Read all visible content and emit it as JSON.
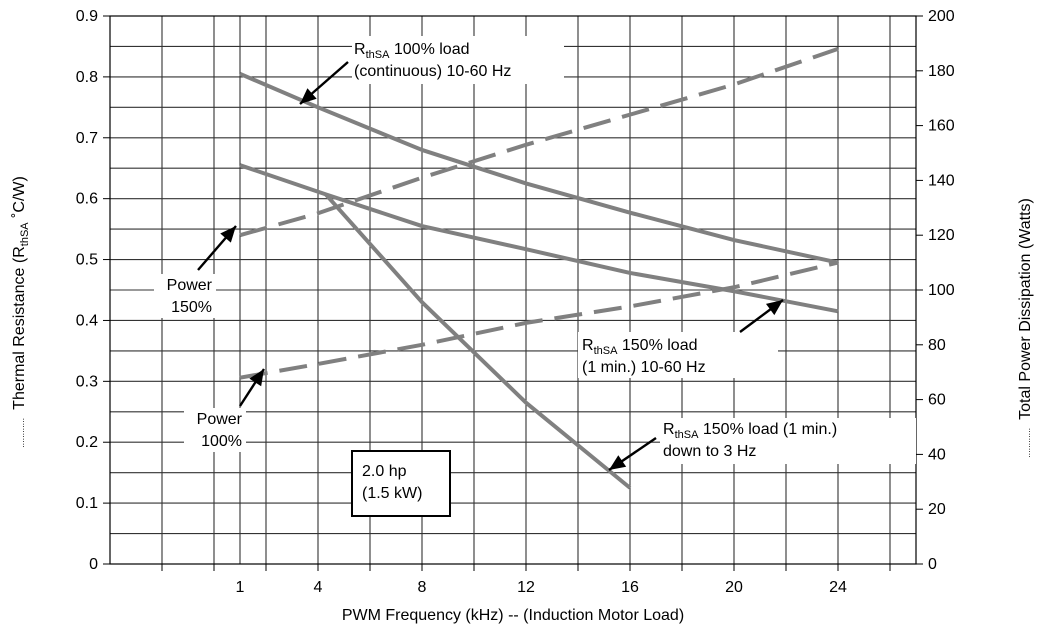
{
  "chart_data": {
    "type": "line",
    "xlabel": "PWM Frequency (kHz) -- (Induction Motor Load)",
    "ylabel_left": "Thermal Resistance (R",
    "ylabel_left_sub": "thSA",
    "ylabel_left_unit": " ˚C/W)",
    "ylabel_left_prefix": "............",
    "ylabel_right": "Total Power Dissipation (Watts)",
    "ylabel_right_prefix": "............",
    "x_ticks": [
      {
        "pos": 1,
        "label": "1"
      },
      {
        "pos": 4,
        "label": "4"
      },
      {
        "pos": 8,
        "label": "8"
      },
      {
        "pos": 12,
        "label": "12"
      },
      {
        "pos": 16,
        "label": "16"
      },
      {
        "pos": 20,
        "label": "20"
      },
      {
        "pos": 24,
        "label": "24"
      }
    ],
    "xlim": [
      -4,
      27
    ],
    "ylim_left": [
      0,
      0.9
    ],
    "ylim_right": [
      0,
      200
    ],
    "y_left_ticks": [
      "0",
      "0.1",
      "0.2",
      "0.3",
      "0.4",
      "0.5",
      "0.6",
      "0.7",
      "0.8",
      "0.9"
    ],
    "y_left_tick_values": [
      0,
      0.1,
      0.2,
      0.3,
      0.4,
      0.5,
      0.6,
      0.7,
      0.8,
      0.9
    ],
    "y_right_ticks": [
      "0",
      "20",
      "40",
      "60",
      "80",
      "100",
      "120",
      "140",
      "160",
      "180",
      "200"
    ],
    "y_right_tick_values": [
      0,
      20,
      40,
      60,
      80,
      100,
      120,
      140,
      160,
      180,
      200
    ],
    "grid": true,
    "series": [
      {
        "axis": "left",
        "style": "solid",
        "x": [
          1,
          4,
          8,
          12,
          16,
          20,
          24
        ],
        "y": [
          0.805,
          0.75,
          0.68,
          0.625,
          0.577,
          0.532,
          0.495
        ]
      },
      {
        "axis": "left",
        "style": "solid",
        "x": [
          1,
          4.3,
          8,
          12,
          16,
          20,
          24
        ],
        "y": [
          0.655,
          0.607,
          0.555,
          0.517,
          0.478,
          0.448,
          0.415
        ]
      },
      {
        "axis": "left",
        "style": "solid",
        "x": [
          4.3,
          8,
          12,
          16
        ],
        "y": [
          0.607,
          0.43,
          0.265,
          0.125
        ]
      },
      {
        "axis": "right",
        "style": "dashed",
        "x": [
          1,
          4,
          8,
          12,
          16,
          20,
          24
        ],
        "y": [
          120,
          128,
          141,
          153,
          164,
          175,
          188
        ]
      },
      {
        "axis": "right",
        "style": "dashed",
        "x": [
          1,
          4,
          8,
          12,
          16,
          20,
          24
        ],
        "y": [
          68,
          73,
          80,
          88,
          94,
          101,
          110
        ]
      }
    ],
    "annotations": [
      {
        "id": "r100",
        "lines": [
          {
            "main": "R",
            "sub": "thSA",
            "rest": " 100% load"
          },
          {
            "main": "(continuous) 10-60 Hz"
          }
        ]
      },
      {
        "id": "r150",
        "lines": [
          {
            "main": "R",
            "sub": "thSA",
            "rest": " 150% load"
          },
          {
            "main": "(1 min.) 10-60 Hz"
          }
        ]
      },
      {
        "id": "r150low",
        "lines": [
          {
            "main": "R",
            "sub": "thSA",
            "rest": " 150% load (1 min.)"
          },
          {
            "main": "down to 3 Hz"
          }
        ]
      },
      {
        "id": "p150",
        "lines": [
          {
            "main": "Power"
          },
          {
            "main": "150%"
          }
        ]
      },
      {
        "id": "p100",
        "lines": [
          {
            "main": "Power"
          },
          {
            "main": "100%"
          }
        ]
      }
    ],
    "boxed_label": [
      "2.0 hp",
      "(1.5 kW)"
    ]
  }
}
